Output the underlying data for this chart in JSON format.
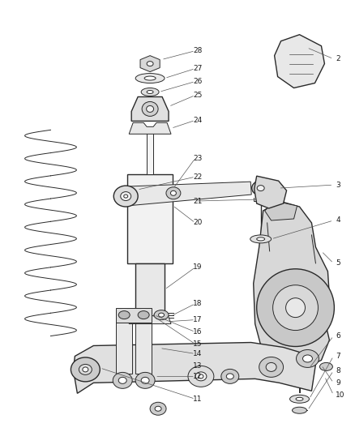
{
  "bg_color": "#ffffff",
  "line_color": "#2a2a2a",
  "label_color": "#1a1a1a",
  "fig_width": 4.38,
  "fig_height": 5.33,
  "dpi": 100
}
